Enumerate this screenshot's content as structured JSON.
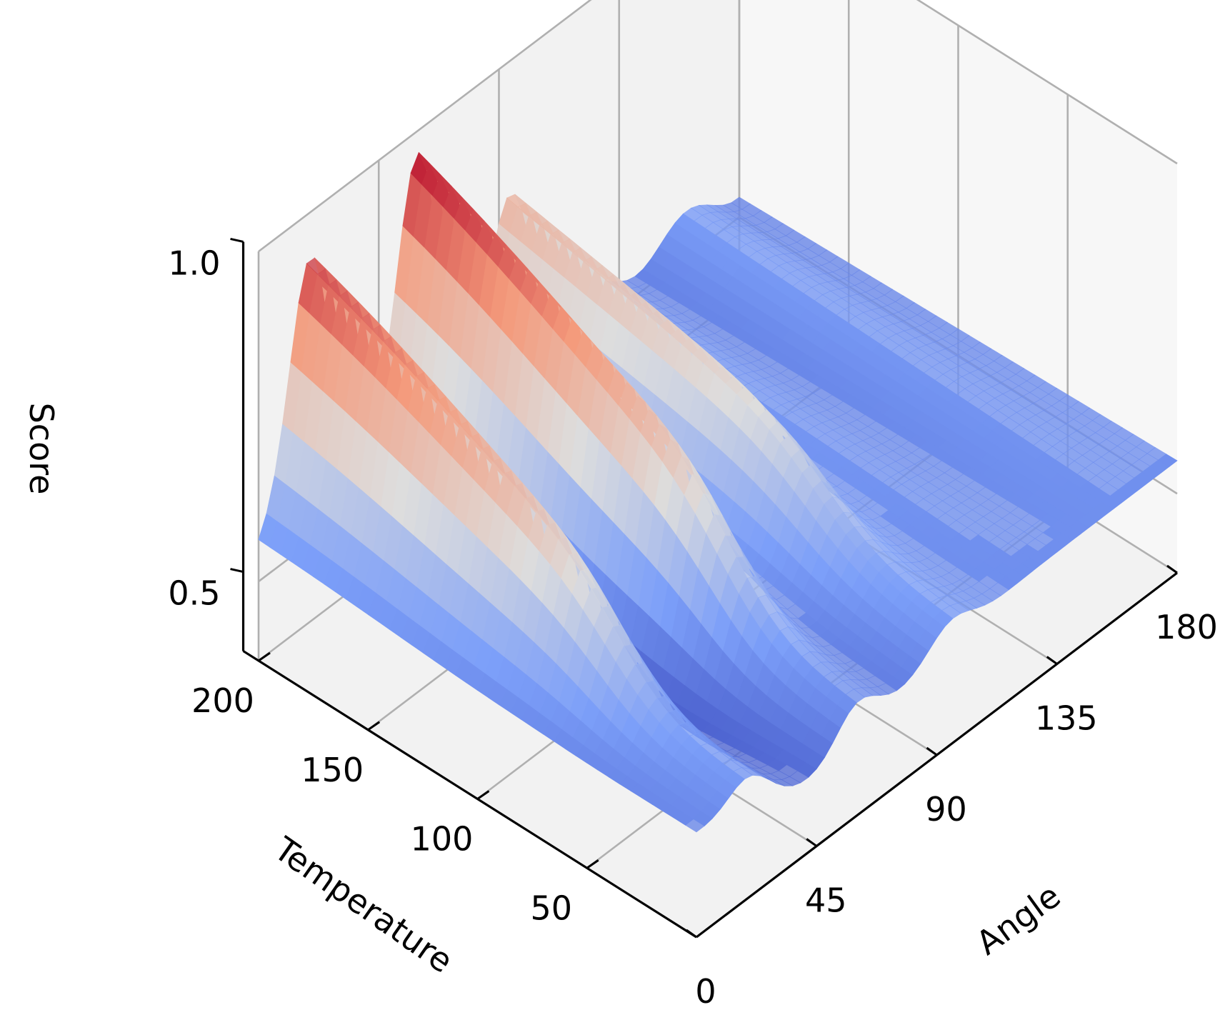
{
  "chart_data": {
    "type": "surface3d",
    "colormap": "coolwarm",
    "grid": true,
    "xaxis": {
      "label": "Angle",
      "ticks": [
        0,
        45,
        90,
        135,
        180
      ],
      "range": [
        0,
        180
      ]
    },
    "yaxis": {
      "label": "Temperature",
      "ticks": [
        50,
        100,
        150,
        200
      ],
      "range": [
        0,
        200
      ]
    },
    "zaxis": {
      "label": "Score",
      "ticks": [
        0.5,
        1.0
      ],
      "tick_labels": [
        "0.5",
        "1.0"
      ],
      "range": [
        0.38,
        1.0
      ]
    },
    "ridges": [
      {
        "angle": 20,
        "peak": 0.94
      },
      {
        "angle": 60,
        "peak": 0.98
      },
      {
        "angle": 95,
        "peak": 0.8
      }
    ],
    "baseline": 0.55,
    "colors": {
      "low": "#3b4cc0",
      "mid": "#dddddd",
      "high": "#b40426"
    }
  }
}
